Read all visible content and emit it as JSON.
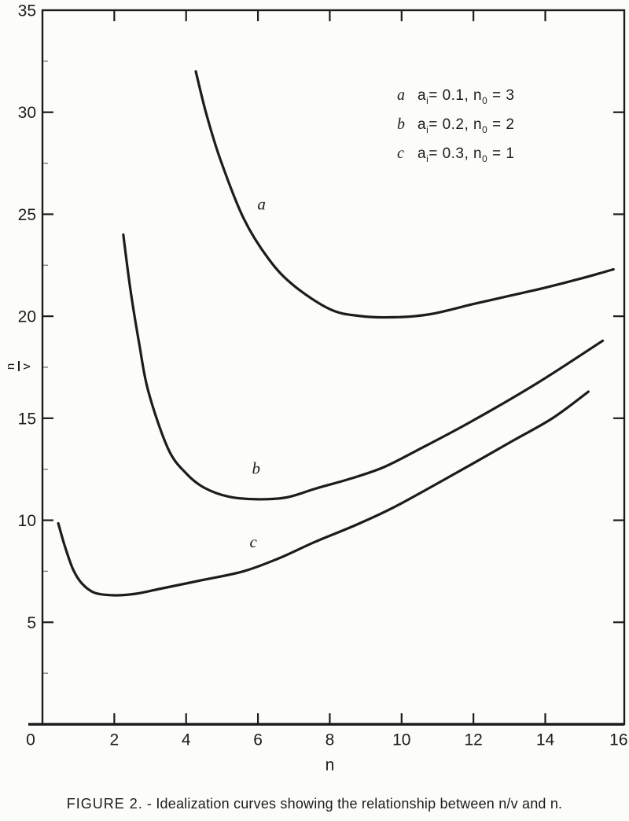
{
  "figure": {
    "caption_prefix": "FIGURE 2.",
    "caption_sep": " - ",
    "caption_body": "Idealization curves showing the relationship between n/v and n."
  },
  "chart_data": {
    "type": "line",
    "title": "",
    "xlabel": "n",
    "ylabel_fraction": {
      "numerator": "n",
      "denominator": "v"
    },
    "xlim": [
      0,
      16.2
    ],
    "ylim": [
      0,
      35
    ],
    "grid": false,
    "frame": true,
    "ink_color": "#1c1c1c",
    "paper_color": "#fcfcfa",
    "x_major_ticks": [
      2,
      4,
      6,
      8,
      10,
      12,
      14
    ],
    "x_axis_labels": [
      {
        "n": 0,
        "label": "0",
        "dx": -15
      },
      {
        "n": 2,
        "label": "2",
        "dx": 0
      },
      {
        "n": 4,
        "label": "4",
        "dx": 0
      },
      {
        "n": 6,
        "label": "6",
        "dx": 0
      },
      {
        "n": 8,
        "label": "8",
        "dx": 0
      },
      {
        "n": 10,
        "label": "10",
        "dx": 0
      },
      {
        "n": 12,
        "label": "12",
        "dx": 0
      },
      {
        "n": 14,
        "label": "14",
        "dx": 0
      },
      {
        "n": 16,
        "label": "16",
        "dx": 2
      }
    ],
    "y_major_ticks": [
      5,
      10,
      15,
      20,
      25,
      30
    ],
    "y_minor_ticks": [
      2.5,
      7.5,
      12.5,
      17.5,
      22.5,
      27.5,
      32.5
    ],
    "y_axis_labels": [
      {
        "v": 35,
        "label": "35"
      },
      {
        "v": 30,
        "label": "30"
      },
      {
        "v": 25,
        "label": "25"
      },
      {
        "v": 20,
        "label": "20"
      },
      {
        "v": 15,
        "label": "15"
      },
      {
        "v": 10,
        "label": "10"
      },
      {
        "v": 5,
        "label": "5"
      }
    ],
    "legend": {
      "position": "upper-right-inside",
      "eq": "=",
      "comma": ",",
      "items": [
        {
          "curve": "a",
          "param": "a",
          "param_sub": "i",
          "param_val": "0.1",
          "n_var": "n",
          "n_sub": "0",
          "n_val": "3"
        },
        {
          "curve": "b",
          "param": "a",
          "param_sub": "i",
          "param_val": "0.2",
          "n_var": "n",
          "n_sub": "0",
          "n_val": "2"
        },
        {
          "curve": "c",
          "param": "a",
          "param_sub": "i",
          "param_val": "0.3",
          "n_var": "n",
          "n_sub": "0",
          "n_val": "1"
        }
      ]
    },
    "series": [
      {
        "name": "a",
        "label_pos": {
          "n": 6.1,
          "v": 25.5
        },
        "min_point": {
          "n": 9.3,
          "v": 20.0
        },
        "points": [
          [
            4.27,
            32.0
          ],
          [
            4.55,
            30.0
          ],
          [
            4.95,
            27.7
          ],
          [
            5.6,
            24.8
          ],
          [
            6.3,
            22.8
          ],
          [
            7.0,
            21.5
          ],
          [
            8.0,
            20.35
          ],
          [
            8.8,
            20.02
          ],
          [
            9.8,
            19.95
          ],
          [
            10.8,
            20.1
          ],
          [
            12.0,
            20.6
          ],
          [
            13.0,
            21.0
          ],
          [
            14.0,
            21.4
          ],
          [
            15.0,
            21.85
          ],
          [
            15.9,
            22.3
          ]
        ]
      },
      {
        "name": "b",
        "label_pos": {
          "n": 5.95,
          "v": 12.55
        },
        "min_point": {
          "n": 6.0,
          "v": 11.0
        },
        "points": [
          [
            2.25,
            24.0
          ],
          [
            2.45,
            21.3
          ],
          [
            2.7,
            18.6
          ],
          [
            2.95,
            16.3
          ],
          [
            3.5,
            13.5
          ],
          [
            4.0,
            12.3
          ],
          [
            4.5,
            11.6
          ],
          [
            5.2,
            11.15
          ],
          [
            6.0,
            11.03
          ],
          [
            6.8,
            11.12
          ],
          [
            7.6,
            11.55
          ],
          [
            8.6,
            12.05
          ],
          [
            9.5,
            12.6
          ],
          [
            10.4,
            13.4
          ],
          [
            11.9,
            14.8
          ],
          [
            13.8,
            16.75
          ],
          [
            15.6,
            18.8
          ]
        ]
      },
      {
        "name": "c",
        "label_pos": {
          "n": 5.87,
          "v": 8.95
        },
        "min_point": {
          "n": 2.0,
          "v": 6.3
        },
        "points": [
          [
            0.44,
            9.85
          ],
          [
            0.62,
            8.75
          ],
          [
            0.85,
            7.6
          ],
          [
            1.1,
            6.9
          ],
          [
            1.45,
            6.45
          ],
          [
            2.0,
            6.32
          ],
          [
            2.6,
            6.4
          ],
          [
            3.3,
            6.65
          ],
          [
            4.4,
            7.05
          ],
          [
            5.6,
            7.5
          ],
          [
            6.6,
            8.15
          ],
          [
            7.6,
            8.95
          ],
          [
            8.7,
            9.75
          ],
          [
            9.8,
            10.65
          ],
          [
            11.5,
            12.3
          ],
          [
            13.1,
            13.9
          ],
          [
            14.2,
            15.0
          ],
          [
            15.2,
            16.3
          ]
        ]
      }
    ]
  }
}
